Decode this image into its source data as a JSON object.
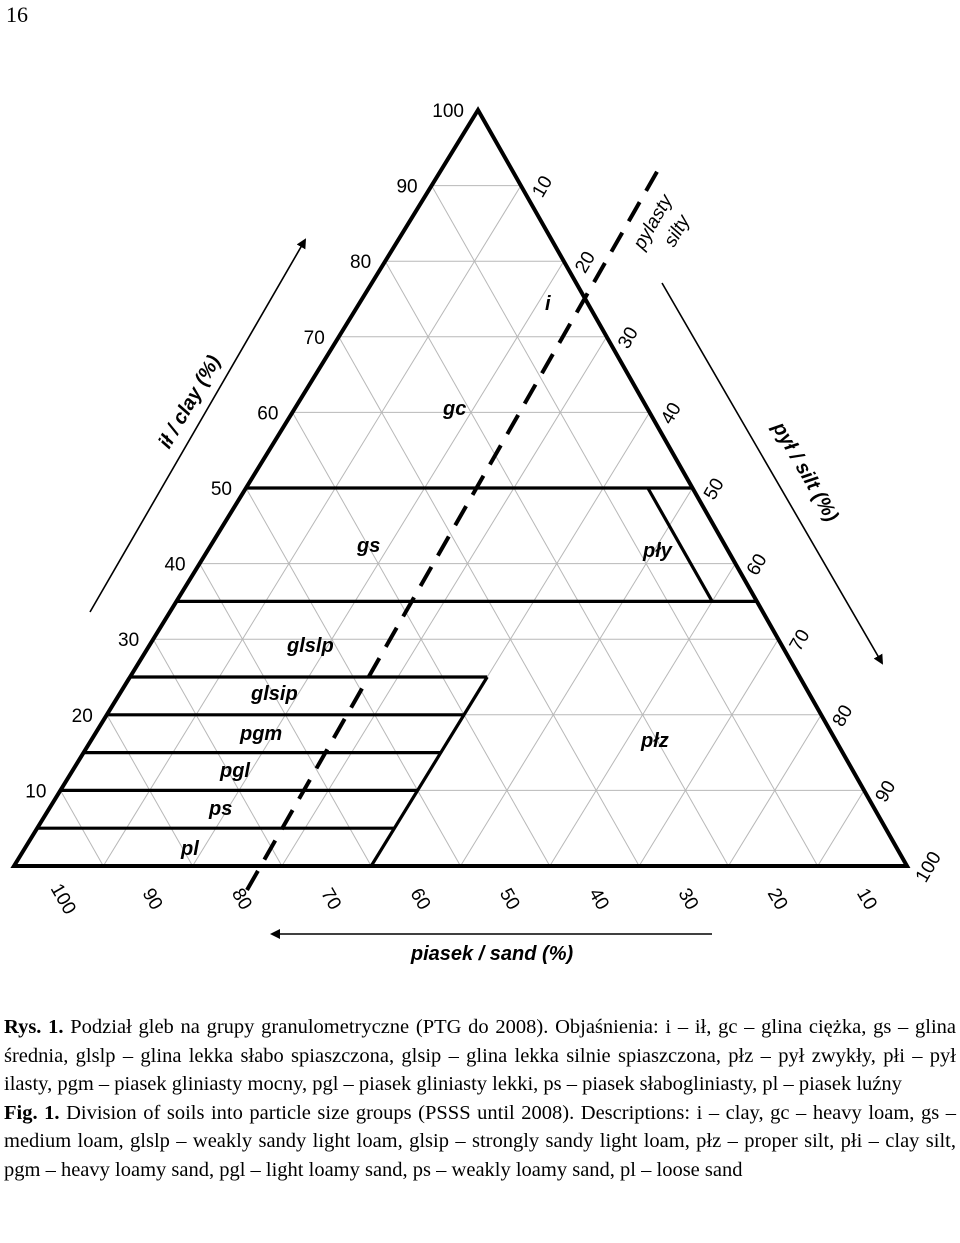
{
  "page_number": "16",
  "diagram": {
    "clay_ticks": [
      "10",
      "20",
      "30",
      "40",
      "50",
      "60",
      "70",
      "80",
      "90",
      "100"
    ],
    "silt_ticks": [
      "10",
      "20",
      "30",
      "40",
      "50",
      "60",
      "70",
      "80",
      "90",
      "100"
    ],
    "sand_ticks": [
      "100",
      "90",
      "80",
      "70",
      "60",
      "50",
      "40",
      "30",
      "20",
      "10"
    ],
    "clay_axis_title": "ił / clay (%)",
    "silt_axis_title": "pył / silt (%)",
    "sand_axis_title": "piasek / sand (%)",
    "boundary_label_line1": "pylasty",
    "boundary_label_line2": "silty",
    "regions": {
      "i": "i",
      "gc": "gc",
      "gs": "gs",
      "pli": "pły",
      "glslp": "glslp",
      "glsip": "glsip",
      "pgm": "pgm",
      "pgl": "pgl",
      "ps": "ps",
      "pl": "pl",
      "plz": "płz"
    }
  },
  "caption": {
    "pl_lead": "Rys. 1.",
    "pl_text": "Podział gleb na grupy granulometryczne  (PTG do 2008). Objaśnienia: i – ił, gc – glina ciężka, gs – glina średnia, glslp – glina lekka słabo spiaszczona, glsip – glina lekka silnie spiaszczona, płz – pył zwykły, płi – pył ilasty, pgm – piasek gliniasty mocny, pgl – piasek gliniasty lekki, ps – piasek słabogliniasty, pl – piasek luźny",
    "en_lead": "Fig. 1.",
    "en_text": "Division of soils into particle size groups (PSSS until 2008). Descriptions: i – clay, gc – heavy loam, gs – medium loam, glslp – weakly sandy light loam, glsip – strongly sandy light loam, płz – proper silt, płi – clay silt, pgm – heavy loamy sand, pgl – light loamy sand, ps – weakly loamy sand, pl – loose sand"
  }
}
